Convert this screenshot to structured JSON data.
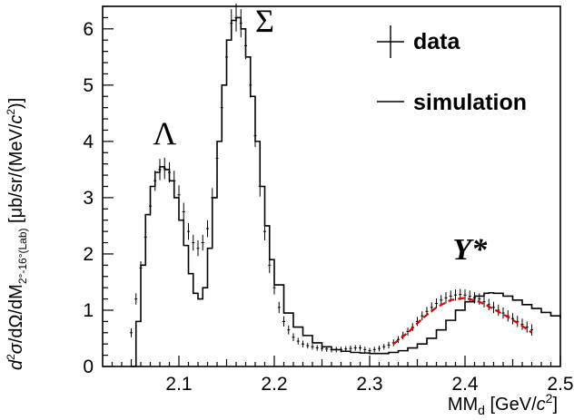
{
  "chart_data": {
    "type": "line",
    "title": "",
    "xlabel": "MM_d [GeV/c²]",
    "xlabel_parts": {
      "main": "MM",
      "sub": "d",
      "unit": " [GeV/",
      "unit_it": "c",
      "sup": "2",
      "close": "]"
    },
    "ylabel": "d²σ/dΩ/dM_{2°-16°(Lab)} [μb/sr/(MeV/c²)]",
    "ylabel_parts": {
      "a": "d",
      "b": "σ",
      "c": "/dΩ/dM",
      "sub": "2°-16°(Lab)",
      "unit": " [μb/sr/(MeV/",
      "unit_it": "c",
      "sup": "2",
      "close": ")]"
    },
    "xlim": [
      2.02,
      2.5
    ],
    "ylim": [
      0,
      6.4
    ],
    "x_ticks": [
      "2.1",
      "2.2",
      "2.3",
      "2.4",
      "2.5"
    ],
    "y_ticks": [
      "0",
      "1",
      "2",
      "3",
      "4",
      "5",
      "6"
    ],
    "legend_position": "top-right",
    "legend": [
      {
        "label": "data",
        "style": "points with error bars"
      },
      {
        "label": "simulation",
        "style": "line"
      }
    ],
    "annotations": [
      {
        "text": "Λ",
        "x": 2.085,
        "y": 3.95
      },
      {
        "text": "Σ",
        "x": 2.19,
        "y": 5.95
      },
      {
        "text": "Y*",
        "x": 2.405,
        "y": 1.9
      }
    ],
    "colors": {
      "data": "#000000",
      "simulation": "#000000",
      "fit": "#e00000"
    },
    "series": [
      {
        "name": "data",
        "x": [
          2.05,
          2.055,
          2.06,
          2.065,
          2.07,
          2.075,
          2.08,
          2.085,
          2.09,
          2.095,
          2.1,
          2.105,
          2.11,
          2.115,
          2.12,
          2.125,
          2.13,
          2.135,
          2.14,
          2.145,
          2.15,
          2.155,
          2.16,
          2.165,
          2.17,
          2.175,
          2.18,
          2.185,
          2.19,
          2.195,
          2.2,
          2.205,
          2.21,
          2.215,
          2.22,
          2.225,
          2.23,
          2.235,
          2.24,
          2.245,
          2.25,
          2.255,
          2.26,
          2.265,
          2.27,
          2.275,
          2.28,
          2.285,
          2.29,
          2.295,
          2.3,
          2.305,
          2.31,
          2.315,
          2.32,
          2.325,
          2.33,
          2.335,
          2.34,
          2.345,
          2.35,
          2.355,
          2.36,
          2.365,
          2.37,
          2.375,
          2.38,
          2.385,
          2.39,
          2.395,
          2.4,
          2.405,
          2.41,
          2.415,
          2.42,
          2.425,
          2.43,
          2.435,
          2.44,
          2.445,
          2.45,
          2.455,
          2.46,
          2.465,
          2.47
        ],
        "y": [
          0.6,
          1.2,
          1.75,
          2.3,
          2.85,
          3.3,
          3.5,
          3.52,
          3.45,
          3.3,
          3.05,
          2.75,
          2.4,
          2.2,
          2.1,
          2.2,
          2.45,
          3.0,
          3.7,
          4.6,
          5.5,
          6.1,
          6.2,
          6.1,
          5.7,
          5.0,
          4.1,
          3.2,
          2.4,
          1.8,
          1.4,
          1.05,
          0.8,
          0.65,
          0.52,
          0.45,
          0.4,
          0.37,
          0.35,
          0.33,
          0.32,
          0.31,
          0.3,
          0.3,
          0.3,
          0.31,
          0.32,
          0.33,
          0.33,
          0.3,
          0.28,
          0.3,
          0.32,
          0.35,
          0.38,
          0.42,
          0.48,
          0.55,
          0.62,
          0.7,
          0.8,
          0.9,
          0.98,
          1.05,
          1.12,
          1.18,
          1.22,
          1.25,
          1.27,
          1.28,
          1.27,
          1.25,
          1.22,
          1.2,
          1.15,
          1.1,
          1.05,
          1.0,
          0.95,
          0.9,
          0.85,
          0.8,
          0.75,
          0.7,
          0.65
        ],
        "err": [
          0.08,
          0.1,
          0.12,
          0.15,
          0.17,
          0.18,
          0.19,
          0.19,
          0.18,
          0.18,
          0.17,
          0.16,
          0.15,
          0.14,
          0.14,
          0.14,
          0.15,
          0.17,
          0.19,
          0.21,
          0.23,
          0.25,
          0.25,
          0.25,
          0.24,
          0.22,
          0.2,
          0.18,
          0.16,
          0.14,
          0.12,
          0.1,
          0.09,
          0.08,
          0.07,
          0.06,
          0.06,
          0.05,
          0.05,
          0.05,
          0.05,
          0.05,
          0.05,
          0.05,
          0.05,
          0.05,
          0.05,
          0.05,
          0.05,
          0.05,
          0.05,
          0.05,
          0.05,
          0.05,
          0.06,
          0.06,
          0.06,
          0.07,
          0.07,
          0.07,
          0.08,
          0.08,
          0.08,
          0.09,
          0.09,
          0.09,
          0.1,
          0.1,
          0.1,
          0.1,
          0.1,
          0.1,
          0.1,
          0.1,
          0.1,
          0.1,
          0.1,
          0.1,
          0.1,
          0.1,
          0.1,
          0.1,
          0.1,
          0.1,
          0.1
        ]
      },
      {
        "name": "simulation",
        "x": [
          2.05,
          2.055,
          2.06,
          2.065,
          2.07,
          2.075,
          2.08,
          2.085,
          2.09,
          2.095,
          2.1,
          2.105,
          2.11,
          2.115,
          2.12,
          2.125,
          2.13,
          2.135,
          2.14,
          2.145,
          2.15,
          2.155,
          2.16,
          2.165,
          2.17,
          2.175,
          2.18,
          2.185,
          2.19,
          2.195,
          2.2,
          2.21,
          2.22,
          2.23,
          2.24,
          2.25,
          2.26,
          2.27,
          2.28,
          2.29,
          2.3,
          2.31,
          2.32,
          2.33,
          2.34,
          2.35,
          2.36,
          2.37,
          2.38,
          2.39,
          2.4,
          2.41,
          2.42,
          2.425,
          2.43,
          2.44,
          2.45,
          2.46,
          2.47,
          2.48,
          2.49,
          2.5
        ],
        "y": [
          0.0,
          0.8,
          1.8,
          2.7,
          3.2,
          3.45,
          3.55,
          3.5,
          3.3,
          3.0,
          2.6,
          2.15,
          1.65,
          1.3,
          1.2,
          1.4,
          2.1,
          3.0,
          4.0,
          5.0,
          5.8,
          6.15,
          6.2,
          6.0,
          5.5,
          4.8,
          4.0,
          3.2,
          2.5,
          1.9,
          1.45,
          0.95,
          0.7,
          0.55,
          0.42,
          0.35,
          0.3,
          0.27,
          0.25,
          0.24,
          0.23,
          0.23,
          0.25,
          0.28,
          0.33,
          0.4,
          0.5,
          0.65,
          0.82,
          1.0,
          1.15,
          1.25,
          1.3,
          1.31,
          1.3,
          1.25,
          1.18,
          1.1,
          1.03,
          0.96,
          0.9,
          0.85
        ]
      },
      {
        "name": "fit",
        "x": [
          2.325,
          2.34,
          2.355,
          2.37,
          2.385,
          2.4,
          2.415,
          2.43,
          2.445,
          2.46,
          2.47
        ],
        "y": [
          0.4,
          0.6,
          0.85,
          1.05,
          1.18,
          1.22,
          1.15,
          1.02,
          0.88,
          0.72,
          0.6
        ]
      }
    ]
  }
}
